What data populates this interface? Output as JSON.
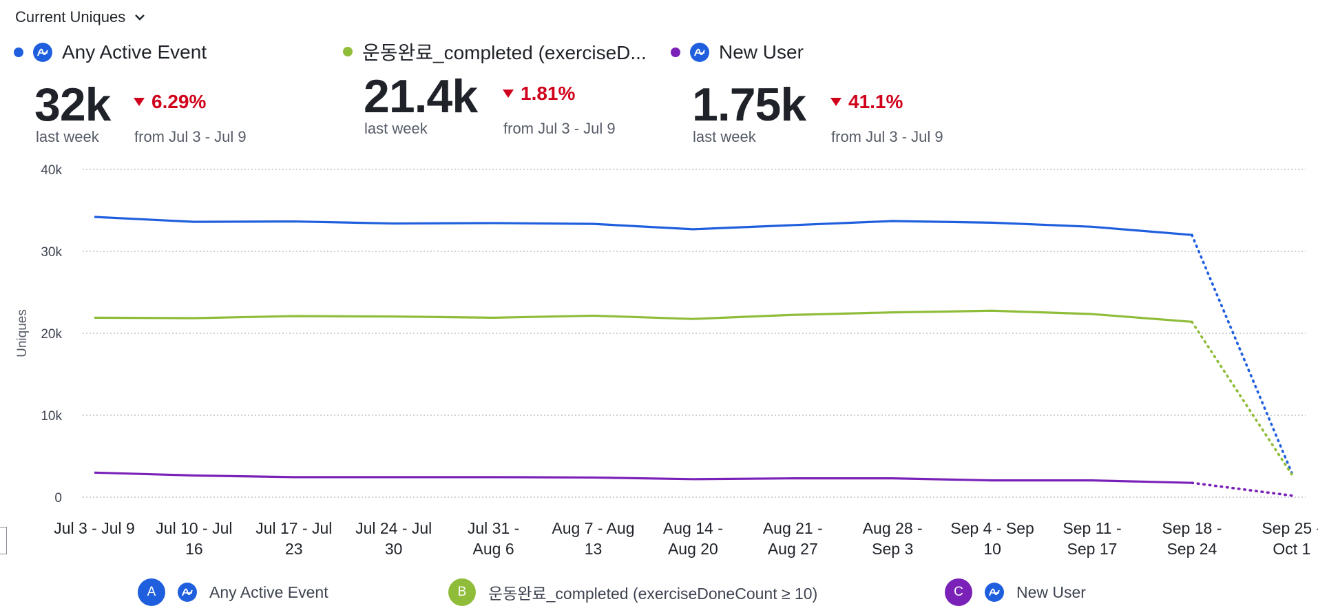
{
  "header": {
    "metric_label": "Current Uniques"
  },
  "cards": [
    {
      "name": "Any Active Event",
      "color": "#1f5fde",
      "icon": "amplitude-icon",
      "value": "32k",
      "period": "last week",
      "delta": "6.29%",
      "direction": "down",
      "compare": "from Jul 3 - Jul 9"
    },
    {
      "name": "운동완료_completed (exerciseD...",
      "color": "#8fbd3a",
      "icon": "",
      "value": "21.4k",
      "period": "last week",
      "delta": "1.81%",
      "direction": "down",
      "compare": "from Jul 3 - Jul 9"
    },
    {
      "name": "New User",
      "color": "#7a22b8",
      "icon": "amplitude-icon",
      "value": "1.75k",
      "period": "last week",
      "delta": "41.1%",
      "direction": "down",
      "compare": "from Jul 3 - Jul 9"
    }
  ],
  "chart_data": {
    "type": "line",
    "ylabel": "Uniques",
    "ylim": [
      0,
      40000
    ],
    "yticks": [
      0,
      10000,
      20000,
      30000,
      40000
    ],
    "ytick_labels": [
      "0",
      "10k",
      "20k",
      "30k",
      "40k"
    ],
    "grid": true,
    "categories": [
      [
        "Jul 3 - Jul 9"
      ],
      [
        "Jul 10 - Jul",
        "16"
      ],
      [
        "Jul 17 - Jul",
        "23"
      ],
      [
        "Jul 24 - Jul",
        "30"
      ],
      [
        "Jul 31 -",
        "Aug 6"
      ],
      [
        "Aug 7 - Aug",
        "13"
      ],
      [
        "Aug 14 -",
        "Aug 20"
      ],
      [
        "Aug 21 -",
        "Aug 27"
      ],
      [
        "Aug 28 -",
        "Sep 3"
      ],
      [
        "Sep 4 - Sep",
        "10"
      ],
      [
        "Sep 11 -",
        "Sep 17"
      ],
      [
        "Sep 18 -",
        "Sep 24"
      ],
      [
        "Sep 25 -",
        "Oct 1"
      ]
    ],
    "incomplete_from_index": 11,
    "series": [
      {
        "name": "Any Active Event",
        "badge": "A",
        "color": "#1f5fde",
        "values": [
          34200,
          33600,
          33650,
          33400,
          33450,
          33350,
          32700,
          33200,
          33700,
          33500,
          33000,
          32000,
          3000
        ]
      },
      {
        "name": "운동완료_completed (exerciseDoneCount ≥ 10)",
        "badge": "B",
        "color": "#8fbd3a",
        "values": [
          21900,
          21850,
          22100,
          22050,
          21900,
          22150,
          21750,
          22250,
          22550,
          22750,
          22350,
          21400,
          2800
        ]
      },
      {
        "name": "New User",
        "badge": "C",
        "color": "#7a22b8",
        "values": [
          3000,
          2650,
          2450,
          2450,
          2450,
          2400,
          2200,
          2300,
          2300,
          2050,
          2050,
          1750,
          200
        ]
      }
    ]
  }
}
